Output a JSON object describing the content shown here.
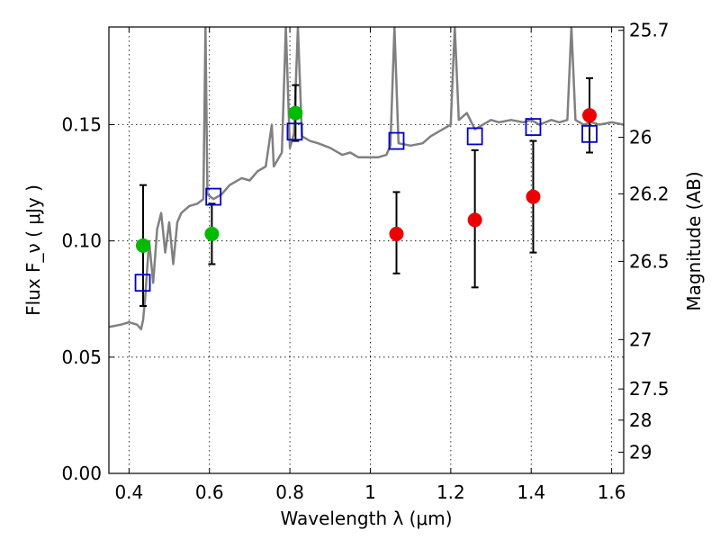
{
  "chart_data": {
    "type": "scatter",
    "title": "",
    "xlabel": "Wavelength  λ (μm)",
    "ylabel": "Flux  F_ν  ( μJy )",
    "y2label": "Magnitude (AB)",
    "xlim": [
      0.35,
      1.63
    ],
    "ylim": [
      0.0,
      0.192
    ],
    "xticks": [
      0.4,
      0.6,
      0.8,
      1.0,
      1.2,
      1.4,
      1.6
    ],
    "xtick_labels": [
      "0.4",
      "0.6",
      "0.8",
      "1",
      "1.2",
      "1.4",
      "1.6"
    ],
    "yticks": [
      0.0,
      0.05,
      0.1,
      0.15
    ],
    "ytick_labels": [
      "0.00",
      "0.05",
      "0.10",
      "0.15"
    ],
    "y2ticks": [
      {
        "label": "25.7",
        "mag": 25.7
      },
      {
        "label": "26",
        "mag": 26.0
      },
      {
        "label": "26.2",
        "mag": 26.2
      },
      {
        "label": "26.5",
        "mag": 26.5
      },
      {
        "label": "27",
        "mag": 27.0
      },
      {
        "label": "27.5",
        "mag": 27.5
      },
      {
        "label": "28",
        "mag": 28.0
      },
      {
        "label": "29",
        "mag": 29.0
      }
    ],
    "grid": true,
    "colors": {
      "green": "#00bb00",
      "red": "#ee0000",
      "blue": "#0000cc",
      "spectrum": "#808080",
      "errorbar": "#000000"
    },
    "series": [
      {
        "marker": "circle",
        "color": "#00bb00",
        "points": [
          {
            "x": 0.435,
            "y": 0.098,
            "lo": 0.072,
            "hi": 0.124
          },
          {
            "x": 0.606,
            "y": 0.103,
            "lo": 0.09,
            "hi": 0.116
          },
          {
            "x": 0.814,
            "y": 0.155,
            "lo": 0.143,
            "hi": 0.167
          }
        ]
      },
      {
        "marker": "circle",
        "color": "#ee0000",
        "points": [
          {
            "x": 1.065,
            "y": 0.103,
            "lo": 0.086,
            "hi": 0.121
          },
          {
            "x": 1.26,
            "y": 0.109,
            "lo": 0.08,
            "hi": 0.139
          },
          {
            "x": 1.405,
            "y": 0.119,
            "lo": 0.095,
            "hi": 0.143
          },
          {
            "x": 1.545,
            "y": 0.154,
            "lo": 0.138,
            "hi": 0.17
          }
        ]
      },
      {
        "marker": "square",
        "color": "#0000cc",
        "points": [
          {
            "x": 0.434,
            "y": 0.082
          },
          {
            "x": 0.61,
            "y": 0.119
          },
          {
            "x": 0.812,
            "y": 0.147
          },
          {
            "x": 1.065,
            "y": 0.143
          },
          {
            "x": 1.26,
            "y": 0.145
          },
          {
            "x": 1.405,
            "y": 0.149
          },
          {
            "x": 1.545,
            "y": 0.146
          }
        ]
      }
    ],
    "spectrum": [
      [
        0.35,
        0.063
      ],
      [
        0.38,
        0.064
      ],
      [
        0.4,
        0.065
      ],
      [
        0.42,
        0.064
      ],
      [
        0.43,
        0.062
      ],
      [
        0.435,
        0.066
      ],
      [
        0.44,
        0.075
      ],
      [
        0.45,
        0.1
      ],
      [
        0.46,
        0.082
      ],
      [
        0.47,
        0.105
      ],
      [
        0.48,
        0.112
      ],
      [
        0.49,
        0.095
      ],
      [
        0.5,
        0.108
      ],
      [
        0.51,
        0.09
      ],
      [
        0.52,
        0.108
      ],
      [
        0.53,
        0.112
      ],
      [
        0.55,
        0.115
      ],
      [
        0.57,
        0.116
      ],
      [
        0.585,
        0.118
      ],
      [
        0.59,
        0.192
      ],
      [
        0.595,
        0.12
      ],
      [
        0.61,
        0.118
      ],
      [
        0.63,
        0.12
      ],
      [
        0.65,
        0.124
      ],
      [
        0.68,
        0.127
      ],
      [
        0.7,
        0.126
      ],
      [
        0.72,
        0.13
      ],
      [
        0.74,
        0.132
      ],
      [
        0.755,
        0.15
      ],
      [
        0.76,
        0.132
      ],
      [
        0.78,
        0.138
      ],
      [
        0.79,
        0.192
      ],
      [
        0.8,
        0.14
      ],
      [
        0.81,
        0.146
      ],
      [
        0.82,
        0.192
      ],
      [
        0.83,
        0.145
      ],
      [
        0.85,
        0.143
      ],
      [
        0.87,
        0.142
      ],
      [
        0.9,
        0.14
      ],
      [
        0.93,
        0.137
      ],
      [
        0.95,
        0.138
      ],
      [
        0.97,
        0.136
      ],
      [
        1.0,
        0.136
      ],
      [
        1.02,
        0.136
      ],
      [
        1.04,
        0.137
      ],
      [
        1.05,
        0.141
      ],
      [
        1.06,
        0.192
      ],
      [
        1.07,
        0.142
      ],
      [
        1.1,
        0.141
      ],
      [
        1.13,
        0.142
      ],
      [
        1.15,
        0.145
      ],
      [
        1.18,
        0.148
      ],
      [
        1.2,
        0.15
      ],
      [
        1.21,
        0.192
      ],
      [
        1.22,
        0.152
      ],
      [
        1.24,
        0.155
      ],
      [
        1.26,
        0.148
      ],
      [
        1.28,
        0.15
      ],
      [
        1.3,
        0.152
      ],
      [
        1.32,
        0.151
      ],
      [
        1.35,
        0.152
      ],
      [
        1.38,
        0.151
      ],
      [
        1.4,
        0.152
      ],
      [
        1.42,
        0.15
      ],
      [
        1.45,
        0.152
      ],
      [
        1.47,
        0.151
      ],
      [
        1.49,
        0.152
      ],
      [
        1.5,
        0.192
      ],
      [
        1.51,
        0.152
      ],
      [
        1.53,
        0.15
      ],
      [
        1.55,
        0.151
      ],
      [
        1.57,
        0.15
      ],
      [
        1.6,
        0.151
      ],
      [
        1.63,
        0.15
      ]
    ]
  }
}
